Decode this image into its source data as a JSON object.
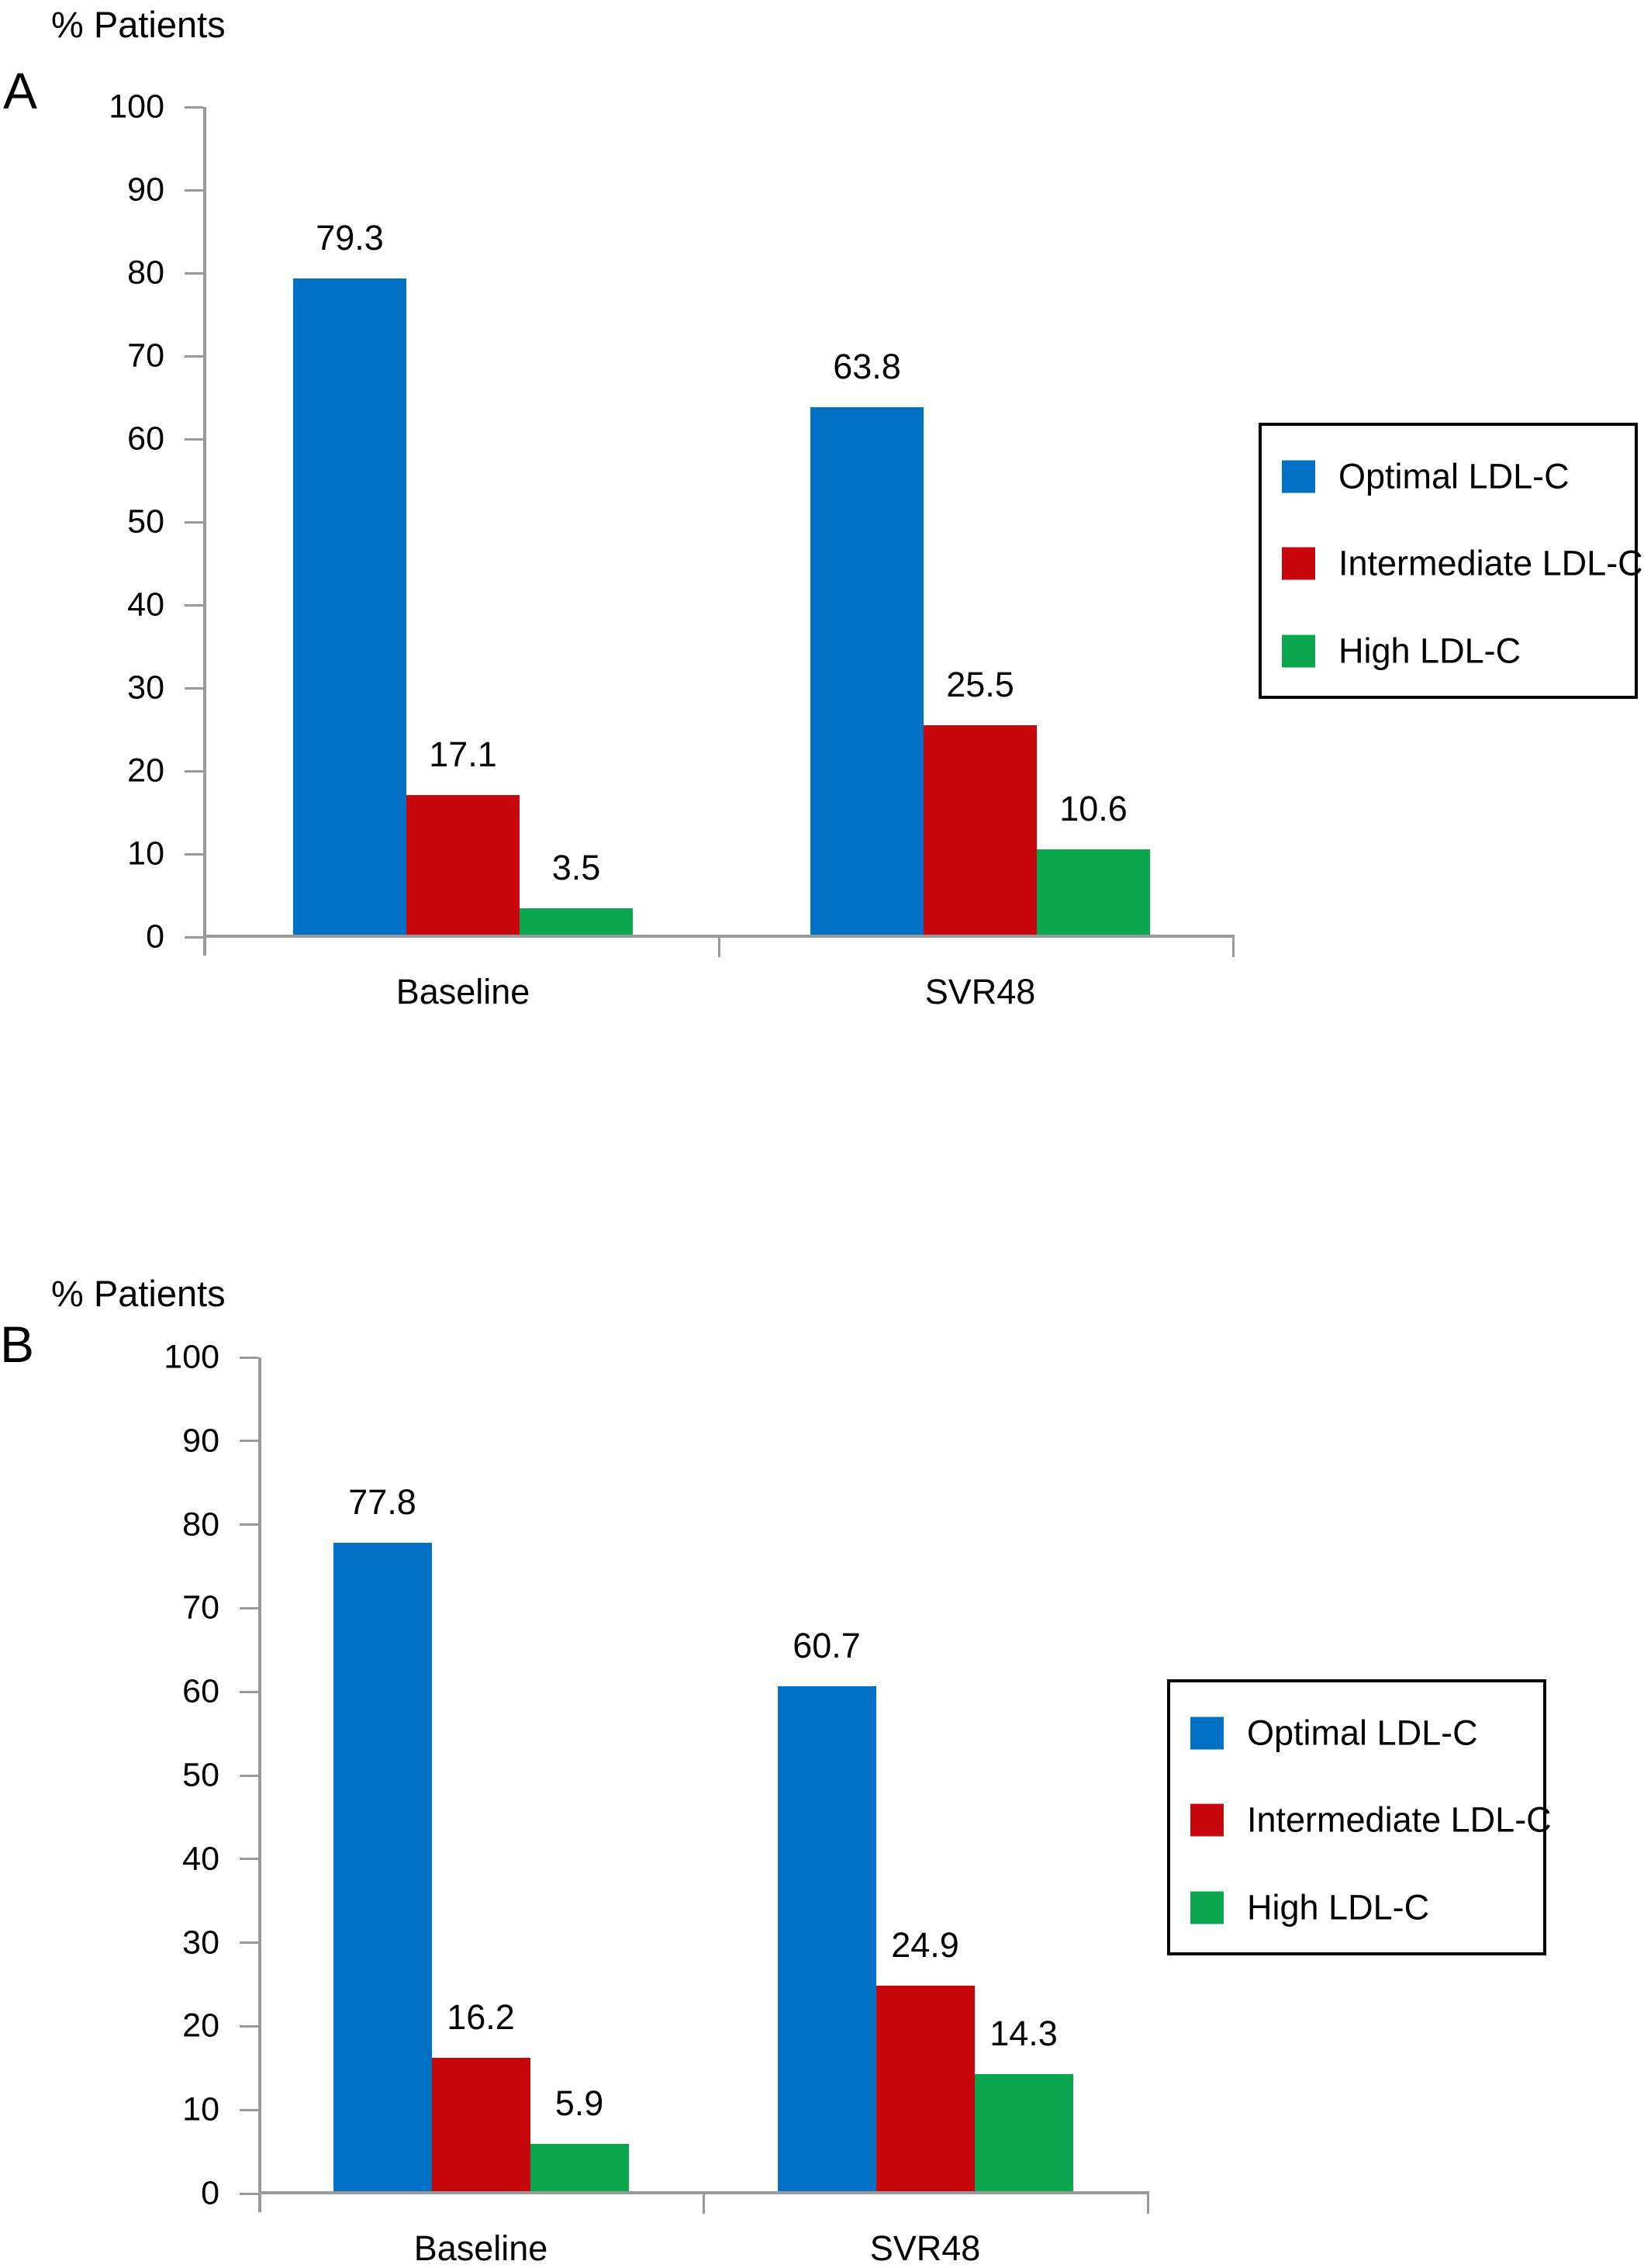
{
  "page": {
    "background": "#ffffff"
  },
  "chart_data": [
    {
      "type": "bar",
      "panel": "A",
      "title": "",
      "ylabel": "% Patients",
      "xlabel": "",
      "ylim": [
        0,
        100
      ],
      "yticks": [
        0,
        10,
        20,
        30,
        40,
        50,
        60,
        70,
        80,
        90,
        100
      ],
      "grid": false,
      "legend_position": "right",
      "axis_color": "#999999",
      "categories": [
        "Baseline",
        "SVR48"
      ],
      "series": [
        {
          "name": "Optimal LDL-C",
          "color": "#0071C5",
          "values": [
            79.3,
            63.8
          ]
        },
        {
          "name": "Intermediate LDL-C",
          "color": "#C7070C",
          "values": [
            17.1,
            25.5
          ]
        },
        {
          "name": "High LDL-C",
          "color": "#0CA64F",
          "values": [
            3.5,
            10.6
          ]
        }
      ]
    },
    {
      "type": "bar",
      "panel": "B",
      "title": "",
      "ylabel": "% Patients",
      "xlabel": "",
      "ylim": [
        0,
        100
      ],
      "yticks": [
        0,
        10,
        20,
        30,
        40,
        50,
        60,
        70,
        80,
        90,
        100
      ],
      "grid": false,
      "legend_position": "right",
      "axis_color": "#999999",
      "categories": [
        "Baseline",
        "SVR48"
      ],
      "series": [
        {
          "name": "Optimal LDL-C",
          "color": "#0071C5",
          "values": [
            77.8,
            60.7
          ]
        },
        {
          "name": "Intermediate LDL-C",
          "color": "#C7070C",
          "values": [
            16.2,
            24.9
          ]
        },
        {
          "name": "High LDL-C",
          "color": "#0CA64F",
          "values": [
            5.9,
            14.3
          ]
        }
      ]
    }
  ]
}
